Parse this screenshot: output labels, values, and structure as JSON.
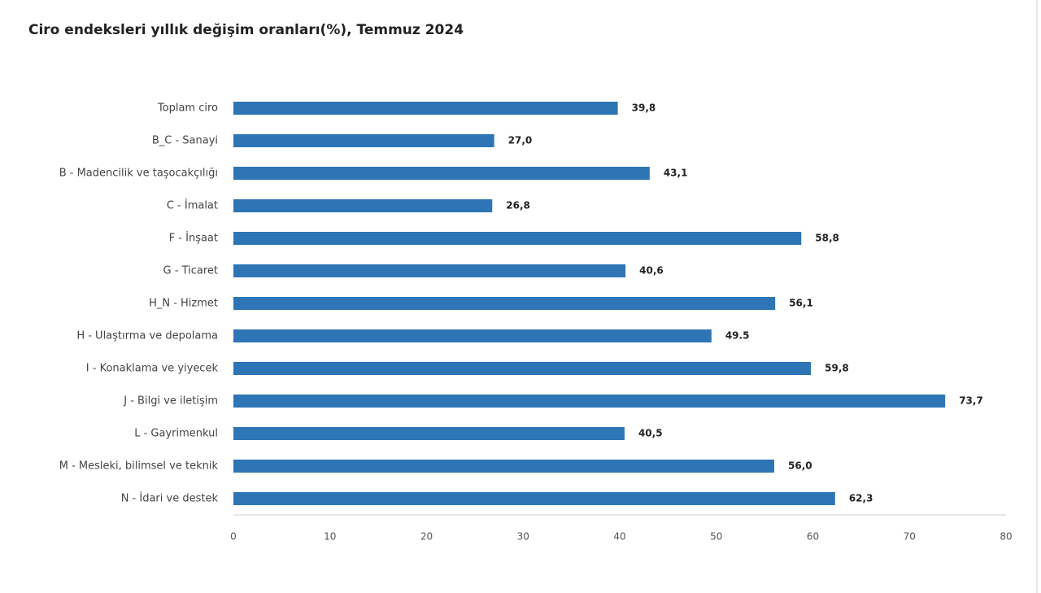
{
  "chart_data": {
    "type": "barh",
    "title": "Ciro endeksleri yıllık değişim oranları(%), Temmuz 2024",
    "categories": [
      "Toplam ciro",
      "B_C - Sanayi",
      "B - Madencilik ve taşocakçılığı",
      "C - İmalat",
      "F - İnşaat",
      "G - Ticaret",
      "H_N - Hizmet",
      "H - Ulaştırma ve depolama",
      "I - Konaklama ve yiyecek",
      "J - Bilgi ve iletişim",
      "L - Gayrimenkul",
      "M - Mesleki, bilimsel ve teknik",
      "N - İdari ve destek"
    ],
    "values": [
      39.8,
      27.0,
      43.1,
      26.8,
      58.8,
      40.6,
      56.1,
      49.5,
      59.8,
      73.7,
      40.5,
      56.0,
      62.3
    ],
    "value_labels": [
      "39,8",
      "27,0",
      "43,1",
      "26,8",
      "58,8",
      "40,6",
      "56,1",
      "49.5",
      "59,8",
      "73,7",
      "40,5",
      "56,0",
      "62,3"
    ],
    "color": "#2e75b6",
    "xlim": [
      0,
      80
    ],
    "xticks": [
      0,
      10,
      20,
      30,
      40,
      50,
      60,
      70,
      80
    ],
    "grid": false
  }
}
